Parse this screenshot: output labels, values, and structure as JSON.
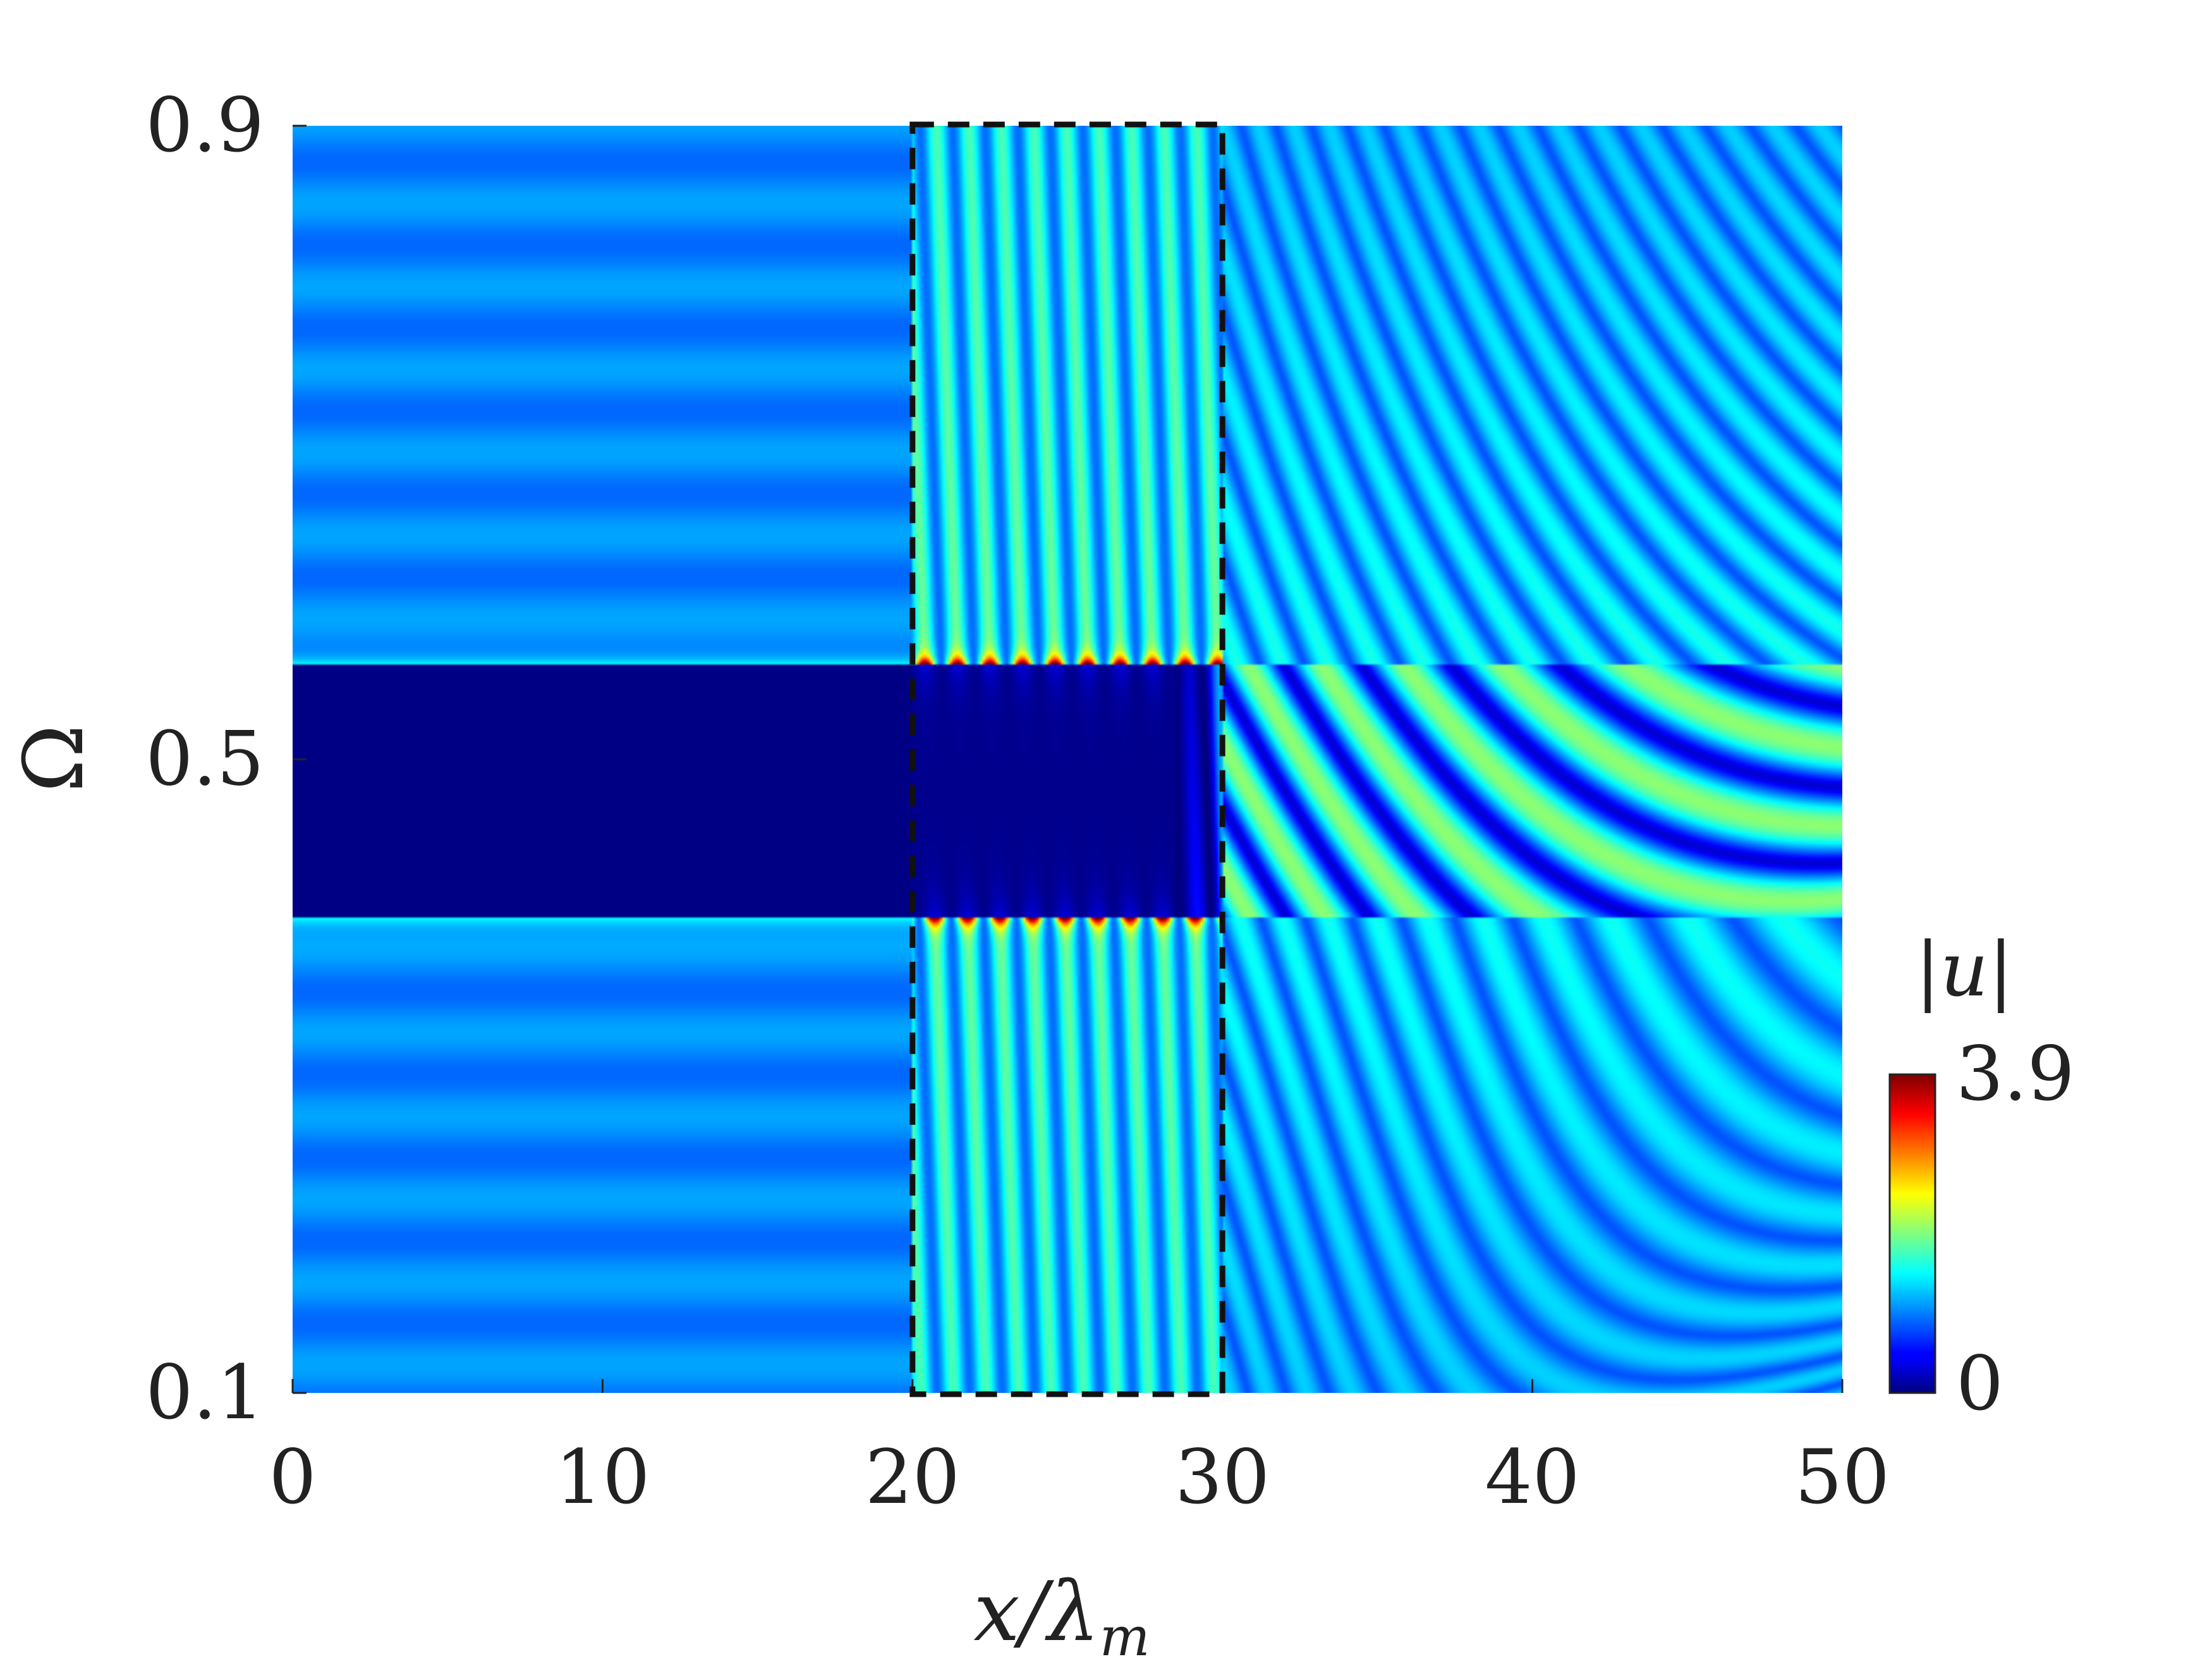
{
  "chart_data": {
    "type": "heatmap",
    "title": "",
    "xlabel": "x/λ",
    "xlabel_sub": "m",
    "ylabel": "Ω",
    "xlim": [
      0,
      50
    ],
    "ylim": [
      0.1,
      0.9
    ],
    "x_ticks": [
      "0",
      "10",
      "20",
      "30",
      "40",
      "50"
    ],
    "x_tick_values": [
      0,
      10,
      20,
      30,
      40,
      50
    ],
    "y_ticks": [
      "0.1",
      "0.5",
      "0.9"
    ],
    "y_tick_values": [
      0.1,
      0.5,
      0.9
    ],
    "colorbar": {
      "label": "|u|",
      "min": 0,
      "max": 3.9,
      "ticks": [
        "0",
        "3.9"
      ],
      "colormap": "jet"
    },
    "band_gap": [
      0.4,
      0.56
    ],
    "highlight_region": {
      "x": [
        20,
        30
      ],
      "y": [
        0.1,
        0.9
      ],
      "style": "dashed",
      "color": "#111111"
    },
    "regions": [
      {
        "x": [
          0,
          20
        ],
        "description": "uniform field with horizontal banding, |u|≈1, |u|≈0 inside band gap"
      },
      {
        "x": [
          20,
          30
        ],
        "description": "graded region with peaks up to 3.9 at band-gap edges"
      },
      {
        "x": [
          30,
          50
        ],
        "description": "inclined fringe pattern, |u|≈1.9 inside band gap"
      }
    ]
  },
  "colors": {
    "background": "#ffffff",
    "text": "#222222",
    "dashed_box": "#111111"
  }
}
